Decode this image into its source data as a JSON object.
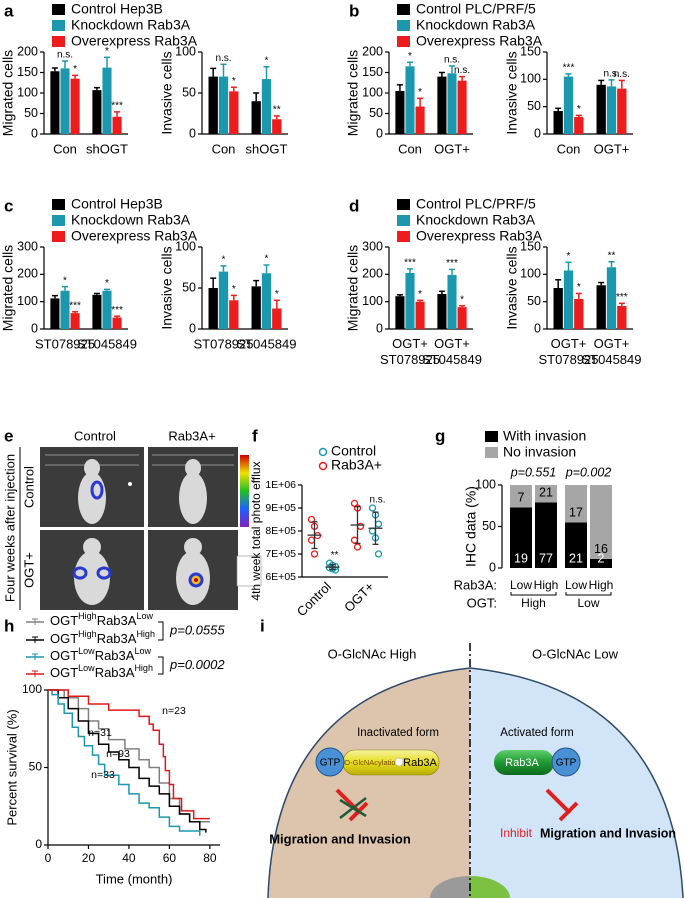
{
  "chart_data": [
    {
      "type": "grouped-bar",
      "label": "a",
      "legend": [
        {
          "name": "Control Hep3B",
          "color": "#000000"
        },
        {
          "name": "Knockdown Rab3A",
          "color": "#1b98ad"
        },
        {
          "name": "Overexpress Rab3A",
          "color": "#ee1c1c"
        }
      ],
      "subplots": [
        {
          "ylabel": "Migrated cells",
          "ylim": [
            0,
            200
          ],
          "yticks": [
            0,
            50,
            100,
            150,
            200
          ],
          "categories": [
            "Con",
            "shOGT"
          ],
          "series": [
            {
              "values": [
                153,
                107
              ],
              "errors": [
                8,
                6
              ]
            },
            {
              "values": [
                160,
                162
              ],
              "errors": [
                18,
                25
              ],
              "significance": [
                "n.s.",
                "*"
              ]
            },
            {
              "values": [
                135,
                42
              ],
              "errors": [
                8,
                12
              ],
              "significance": [
                "*",
                "***"
              ]
            }
          ]
        },
        {
          "ylabel": "Invasive cells",
          "ylim": [
            0,
            100
          ],
          "yticks": [
            0,
            50,
            100
          ],
          "categories": [
            "Con",
            "shOGT"
          ],
          "series": [
            {
              "values": [
                70,
                40
              ],
              "errors": [
                10,
                10
              ]
            },
            {
              "values": [
                70,
                67
              ],
              "errors": [
                15,
                15
              ],
              "significance": [
                "n.s.",
                "*"
              ]
            },
            {
              "values": [
                52,
                18
              ],
              "errors": [
                5,
                4
              ],
              "significance": [
                "*",
                "**"
              ]
            }
          ]
        }
      ]
    },
    {
      "type": "grouped-bar",
      "label": "b",
      "legend": [
        {
          "name": "Control PLC/PRF/5",
          "color": "#000000"
        },
        {
          "name": "Knockdown Rab3A",
          "color": "#1b98ad"
        },
        {
          "name": "Overexpress Rab3A",
          "color": "#ee1c1c"
        }
      ],
      "subplots": [
        {
          "ylabel": "Migrated cells",
          "ylim": [
            0,
            200
          ],
          "yticks": [
            0,
            50,
            100,
            150,
            200
          ],
          "categories": [
            "Con",
            "OGT+"
          ],
          "series": [
            {
              "values": [
                105,
                140
              ],
              "errors": [
                15,
                10
              ]
            },
            {
              "values": [
                165,
                148
              ],
              "errors": [
                10,
                18
              ],
              "significance": [
                "*",
                "n.s."
              ]
            },
            {
              "values": [
                67,
                130
              ],
              "errors": [
                20,
                10
              ],
              "significance": [
                "*",
                "n.s."
              ]
            }
          ]
        },
        {
          "ylabel": "Invasive cells",
          "ylim": [
            0,
            150
          ],
          "yticks": [
            0,
            50,
            100,
            150
          ],
          "categories": [
            "Con",
            "OGT+"
          ],
          "series": [
            {
              "values": [
                42,
                90
              ],
              "errors": [
                5,
                8
              ]
            },
            {
              "values": [
                105,
                87
              ],
              "errors": [
                5,
                12
              ],
              "significance": [
                "***",
                "n.s."
              ]
            },
            {
              "values": [
                31,
                83
              ],
              "errors": [
                3,
                15
              ],
              "significance": [
                "*",
                "n.s."
              ]
            }
          ]
        }
      ]
    },
    {
      "type": "grouped-bar",
      "label": "c",
      "legend": [
        {
          "name": "Control Hep3B",
          "color": "#000000"
        },
        {
          "name": "Knockdown Rab3A",
          "color": "#1b98ad"
        },
        {
          "name": "Overexpress Rab3A",
          "color": "#ee1c1c"
        }
      ],
      "subplots": [
        {
          "ylabel": "Migrated cells",
          "ylim": [
            0,
            300
          ],
          "yticks": [
            0,
            100,
            200,
            300
          ],
          "categories": [
            "ST078925",
            "ST045849"
          ],
          "series": [
            {
              "values": [
                112,
                125
              ],
              "errors": [
                10,
                5
              ]
            },
            {
              "values": [
                140,
                140
              ],
              "errors": [
                15,
                5
              ],
              "significance": [
                "*",
                "*"
              ]
            },
            {
              "values": [
                58,
                42
              ],
              "errors": [
                5,
                5
              ],
              "significance": [
                "***",
                "***"
              ]
            }
          ]
        },
        {
          "ylabel": "Invasive cells",
          "ylim": [
            0,
            100
          ],
          "yticks": [
            0,
            50,
            100
          ],
          "categories": [
            "ST078925",
            "ST045849"
          ],
          "series": [
            {
              "values": [
                50,
                52
              ],
              "errors": [
                12,
                7
              ]
            },
            {
              "values": [
                70,
                68
              ],
              "errors": [
                7,
                10
              ],
              "significance": [
                "*",
                "*"
              ]
            },
            {
              "values": [
                35,
                25
              ],
              "errors": [
                6,
                10
              ],
              "significance": [
                "*",
                "*"
              ]
            }
          ]
        }
      ]
    },
    {
      "type": "grouped-bar",
      "label": "d",
      "legend": [
        {
          "name": "Control PLC/PRF/5",
          "color": "#000000"
        },
        {
          "name": "Knockdown Rab3A",
          "color": "#1b98ad"
        },
        {
          "name": "Overexpress Rab3A",
          "color": "#ee1c1c"
        }
      ],
      "subplots": [
        {
          "ylabel": "Migrated cells",
          "ylim": [
            0,
            300
          ],
          "yticks": [
            0,
            100,
            200,
            300
          ],
          "categories": [
            [
              "OGT+",
              "ST078925"
            ],
            [
              "OGT+",
              "ST045849"
            ]
          ],
          "series": [
            {
              "values": [
                120,
                128
              ],
              "errors": [
                5,
                10
              ]
            },
            {
              "values": [
                205,
                198
              ],
              "errors": [
                15,
                20
              ],
              "significance": [
                "***",
                "***"
              ]
            },
            {
              "values": [
                100,
                80
              ],
              "errors": [
                5,
                5
              ],
              "significance": [
                "*",
                "*"
              ]
            }
          ]
        },
        {
          "ylabel": "Invasive cells",
          "ylim": [
            0,
            150
          ],
          "yticks": [
            0,
            50,
            100,
            150
          ],
          "categories": [
            [
              "OGT+",
              "ST078925"
            ],
            [
              "OGT+",
              "ST045849"
            ]
          ],
          "series": [
            {
              "values": [
                75,
                80
              ],
              "errors": [
                15,
                5
              ]
            },
            {
              "values": [
                107,
                113
              ],
              "errors": [
                15,
                10
              ],
              "significance": [
                "*",
                "**"
              ]
            },
            {
              "values": [
                55,
                42
              ],
              "errors": [
                10,
                5
              ],
              "significance": [
                "*",
                "***"
              ]
            }
          ]
        }
      ]
    },
    {
      "type": "dot",
      "label": "f",
      "ylabel": "4th week total photo efflux",
      "ylim": [
        600000,
        1000000
      ],
      "yticks": [
        {
          "value": 600000,
          "label": "6E+05"
        },
        {
          "value": 700000,
          "label": "7E+05"
        },
        {
          "value": 800000,
          "label": "8E+05"
        },
        {
          "value": 900000,
          "label": "9E+05"
        },
        {
          "value": 1000000,
          "label": "1E+06"
        }
      ],
      "categories": [
        "Control",
        "OGT+"
      ],
      "series": [
        {
          "name": "Control",
          "color": "#1b98ad",
          "values": [
            [
              660000,
              650000,
              645000,
              640000,
              635000,
              630000
            ],
            [
              900000,
              870000,
              830000,
              800000,
              770000,
              700000
            ]
          ],
          "mean": [
            643000,
            812000
          ],
          "sd": [
            11000,
            70000
          ],
          "significance": [
            "**",
            "n.s."
          ]
        },
        {
          "name": "Rab3A+",
          "color": "#ee1c1c",
          "values": [
            [
              850000,
              820000,
              780000,
              760000,
              700000
            ],
            [
              920000,
              900000,
              820000,
              760000,
              730000
            ]
          ],
          "mean": [
            782000,
            826000
          ],
          "sd": [
            58000,
            80000
          ]
        }
      ]
    },
    {
      "type": "stacked-percent-bar",
      "label": "g",
      "ylabel": "IHC data (%)",
      "ylim": [
        0,
        100
      ],
      "yticks": [
        0,
        50,
        100
      ],
      "categories": [
        "Low",
        "High",
        "Low",
        "High"
      ],
      "row_label": "Rab3A:",
      "group_label": "OGT:",
      "groups": [
        "High",
        "Low"
      ],
      "p_values": [
        "p=0.551",
        "p=0.002"
      ],
      "series": [
        {
          "name": "With invasion",
          "color": "#000000",
          "values": [
            73,
            79,
            55,
            11
          ],
          "counts": [
            19,
            77,
            21,
            2
          ]
        },
        {
          "name": "No invasion",
          "color": "#a6a6a6",
          "values": [
            27,
            21,
            45,
            89
          ],
          "counts": [
            7,
            21,
            17,
            16
          ]
        }
      ]
    },
    {
      "type": "survival",
      "label": "h",
      "xlabel": "Time (month)",
      "ylabel": "Percent survival (%)",
      "xlim": [
        0,
        85
      ],
      "xticks": [
        0,
        20,
        40,
        60,
        80
      ],
      "ylim": [
        0,
        100
      ],
      "yticks": [
        0,
        50,
        100
      ],
      "p_values": [
        "p=0.0555",
        "p=0.0002"
      ],
      "series": [
        {
          "name": [
            "OGT",
            "High",
            "Rab3A",
            "Low"
          ],
          "n_label": "n=31",
          "color": "#808080",
          "x": [
            0,
            8,
            15,
            20,
            25,
            30,
            38,
            45,
            50,
            55,
            60,
            65,
            70,
            80
          ],
          "values": [
            100,
            95,
            88,
            80,
            75,
            68,
            62,
            55,
            50,
            40,
            30,
            20,
            15,
            15
          ]
        },
        {
          "name": [
            "OGT",
            "High",
            "Rab3A",
            "High"
          ],
          "n_label": "n=93",
          "color": "#000000",
          "x": [
            0,
            5,
            10,
            15,
            20,
            25,
            30,
            35,
            40,
            45,
            50,
            55,
            60,
            65,
            70,
            75,
            78
          ],
          "values": [
            100,
            95,
            88,
            80,
            72,
            65,
            60,
            55,
            50,
            43,
            38,
            33,
            25,
            20,
            15,
            10,
            8
          ]
        },
        {
          "name": [
            "OGT",
            "Low",
            "Rab3A",
            "Low"
          ],
          "n_label": "n=33",
          "color": "#1b98ad",
          "x": [
            0,
            2,
            5,
            8,
            12,
            15,
            18,
            22,
            25,
            28,
            35,
            40,
            45,
            50,
            55,
            60,
            65,
            75
          ],
          "values": [
            100,
            97,
            91,
            85,
            76,
            70,
            64,
            58,
            52,
            45,
            39,
            33,
            27,
            24,
            18,
            12,
            9,
            6
          ]
        },
        {
          "name": [
            "OGT",
            "Low",
            "Rab3A",
            "High"
          ],
          "n_label": "n=23",
          "color": "#e01818",
          "x": [
            0,
            10,
            20,
            30,
            45,
            50,
            52,
            55,
            57,
            58,
            60,
            62,
            66,
            72,
            80
          ],
          "values": [
            100,
            96,
            91,
            87,
            83,
            78,
            74,
            65,
            57,
            48,
            39,
            30,
            22,
            17,
            17
          ]
        }
      ]
    }
  ],
  "panel_e": {
    "label": "e",
    "columns": [
      "Control",
      "Rab3A+"
    ],
    "rows": [
      "Control",
      "OGT+"
    ],
    "side_label": "Four weeks after injection"
  },
  "panel_i": {
    "label": "i",
    "left_title": "O-GlcNAc High",
    "right_title": "O-GlcNAc Low",
    "left_state": "Inactivated form",
    "right_state": "Activated form",
    "gtp": "GTP",
    "modification": "O-GlcNAcylation",
    "protein": "Rab3A",
    "outcome": "Migration and Invasion",
    "inhibit": "Inhibit"
  }
}
